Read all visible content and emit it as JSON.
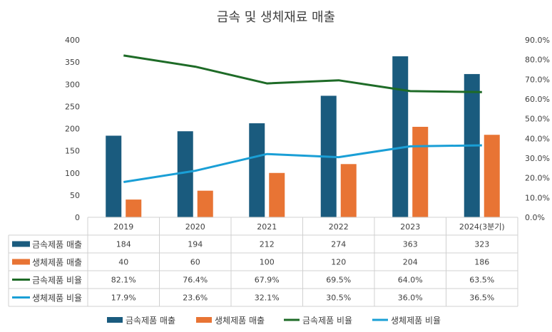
{
  "chart_data": {
    "type": "bar",
    "title": "금속 및 생체재료 매출",
    "categories": [
      "2019",
      "2020",
      "2021",
      "2022",
      "2023",
      "2024(3분기)"
    ],
    "y_left": {
      "ticks": [
        0,
        50,
        100,
        150,
        200,
        250,
        300,
        350,
        400
      ],
      "ylim": [
        0,
        400
      ]
    },
    "y_right": {
      "ticks": [
        "0.0%",
        "10.0%",
        "20.0%",
        "30.0%",
        "40.0%",
        "50.0%",
        "60.0%",
        "70.0%",
        "80.0%",
        "90.0%"
      ],
      "ylim": [
        0,
        0.9
      ]
    },
    "series": [
      {
        "name": "금속제품 매출",
        "kind": "bar",
        "axis": "left",
        "color": "#1a5b7e",
        "values": [
          184,
          194,
          212,
          274,
          363,
          323
        ],
        "labels": [
          "184",
          "194",
          "212",
          "274",
          "363",
          "323"
        ]
      },
      {
        "name": "생체제품 매출",
        "kind": "bar",
        "axis": "left",
        "color": "#e87434",
        "values": [
          40,
          60,
          100,
          120,
          204,
          186
        ],
        "labels": [
          "40",
          "60",
          "100",
          "120",
          "204",
          "186"
        ]
      },
      {
        "name": "금속제품 비율",
        "kind": "line",
        "axis": "right",
        "color": "#1e6b27",
        "values": [
          0.821,
          0.764,
          0.679,
          0.695,
          0.64,
          0.635
        ],
        "labels": [
          "82.1%",
          "76.4%",
          "67.9%",
          "69.5%",
          "64.0%",
          "63.5%"
        ]
      },
      {
        "name": "생체제품 비율",
        "kind": "line",
        "axis": "right",
        "color": "#1a9fd6",
        "values": [
          0.179,
          0.236,
          0.321,
          0.305,
          0.36,
          0.365
        ],
        "labels": [
          "17.9%",
          "23.6%",
          "32.1%",
          "30.5%",
          "36.0%",
          "36.5%"
        ]
      }
    ],
    "grid": false,
    "data_table": true,
    "legend_position": "bottom"
  }
}
